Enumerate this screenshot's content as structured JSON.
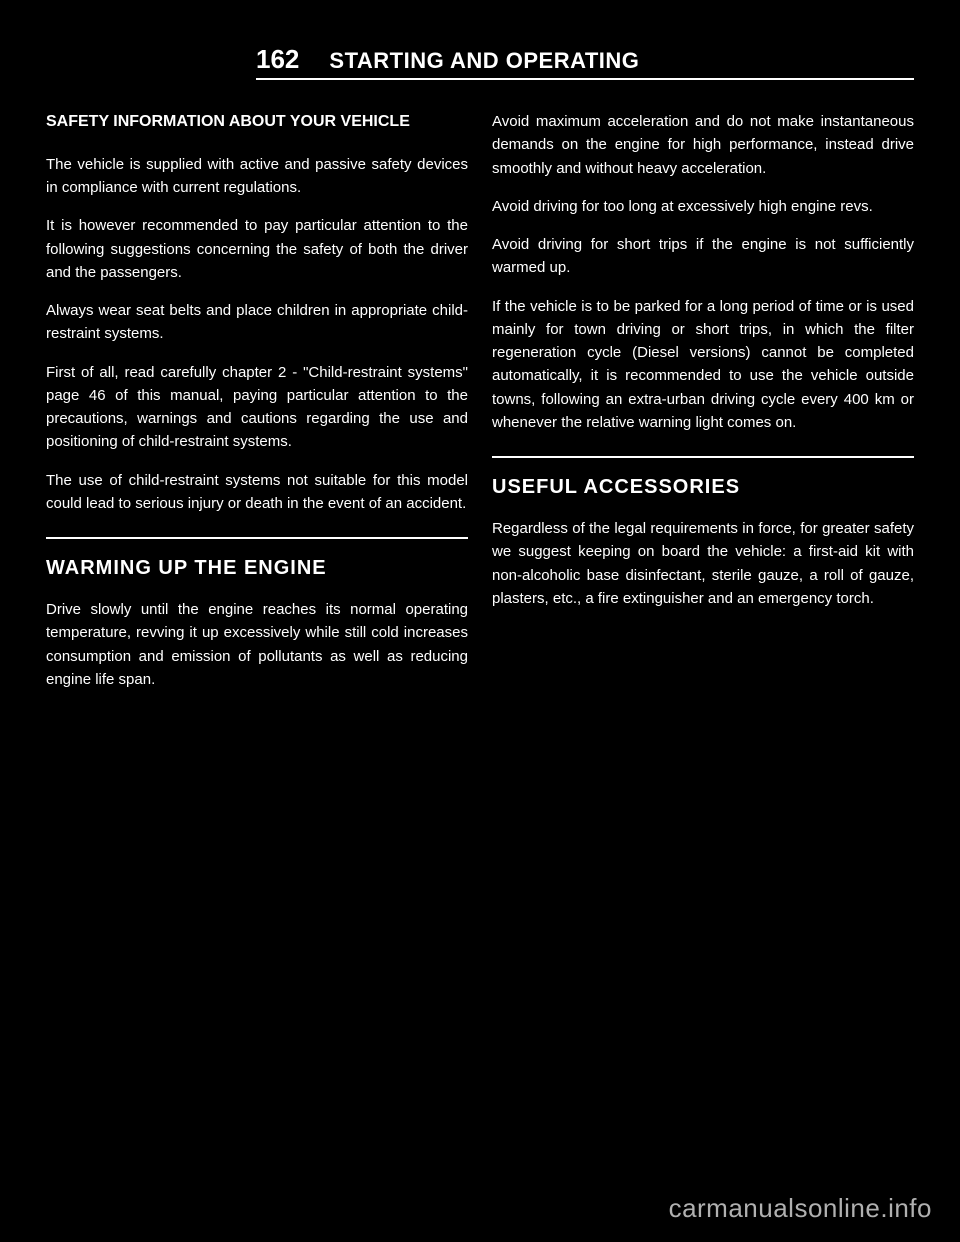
{
  "header": {
    "page_number": "162",
    "title": "STARTING AND OPERATING"
  },
  "left_column": {
    "subtitle": "SAFETY INFORMATION ABOUT YOUR VEHICLE",
    "paragraphs": [
      "The vehicle is supplied with active and passive safety devices in compliance with current regulations.",
      "It is however recommended to pay particular attention to the following suggestions concerning the safety of both the driver and the passengers.",
      "Always wear seat belts and place children in appropriate child-restraint systems.",
      "First of all, read carefully chapter 2 - \"Child-restraint systems\" page 46 of this manual, paying particular attention to the precautions, warnings and cautions regarding the use and positioning of child-restraint systems.",
      "The use of child-restraint systems not suitable for this model could lead to serious injury or death in the event of an accident."
    ],
    "section2_heading": "WARMING UP THE ENGINE",
    "section2_paragraphs": [
      "Drive slowly until the engine reaches its normal operating temperature, revving it up excessively while still cold increases consumption and emission of pollutants as well as reducing engine life span."
    ]
  },
  "right_column": {
    "paragraphs": [
      "Avoid maximum acceleration and do not make instantaneous demands on the engine for high performance, instead drive smoothly and without heavy acceleration.",
      "Avoid driving for too long at excessively high engine revs.",
      "Avoid driving for short trips if the engine is not sufficiently warmed up.",
      "If the vehicle is to be parked for a long period of time or is used mainly for town driving or short trips, in which the filter regeneration cycle (Diesel versions) cannot be completed automatically, it is recommended to use the vehicle outside towns, following an extra-urban driving cycle every 400 km or whenever the relative warning light comes on."
    ],
    "section2_heading": "USEFUL ACCESSORIES",
    "section2_paragraphs": [
      "Regardless of the legal requirements in force, for greater safety we suggest keeping on board the vehicle: a first-aid kit with non-alcoholic base disinfectant, sterile gauze, a roll of gauze, plasters, etc., a fire extinguisher and an emergency torch."
    ]
  },
  "watermark": "carmanualsonline.info",
  "colors": {
    "background": "#000000",
    "text": "#ffffff",
    "watermark": "#b0b0b0",
    "divider": "#ffffff"
  }
}
